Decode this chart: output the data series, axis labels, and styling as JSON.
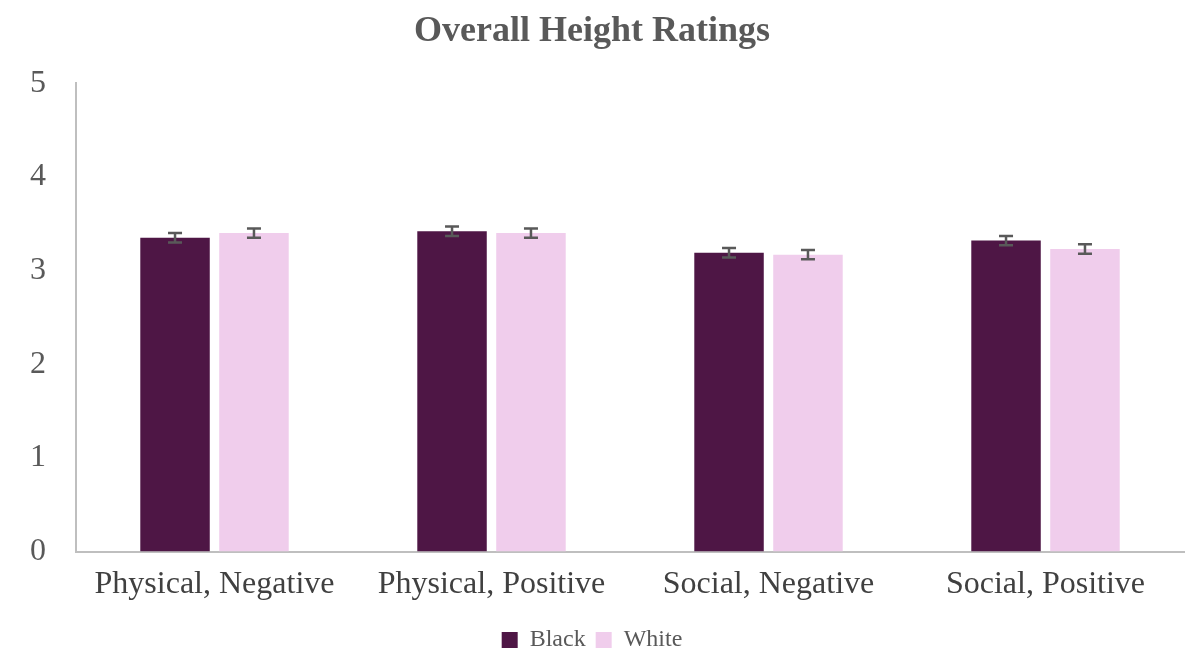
{
  "chart_data": {
    "type": "bar",
    "title": "Overall Height Ratings",
    "categories": [
      "Physical, Negative",
      "Physical, Positive",
      "Social, Negative",
      "Social, Positive"
    ],
    "series": [
      {
        "name": "Black",
        "color": "#4e1645",
        "values": [
          3.35,
          3.42,
          3.19,
          3.32
        ],
        "errors": [
          0.05,
          0.05,
          0.05,
          0.05
        ]
      },
      {
        "name": "White",
        "color": "#f0cdec",
        "values": [
          3.4,
          3.4,
          3.17,
          3.23
        ],
        "errors": [
          0.05,
          0.05,
          0.05,
          0.05
        ]
      }
    ],
    "ylim": [
      0,
      5
    ],
    "yticks": [
      0,
      1,
      2,
      3,
      4,
      5
    ],
    "grid": false,
    "legend": "bottom"
  }
}
